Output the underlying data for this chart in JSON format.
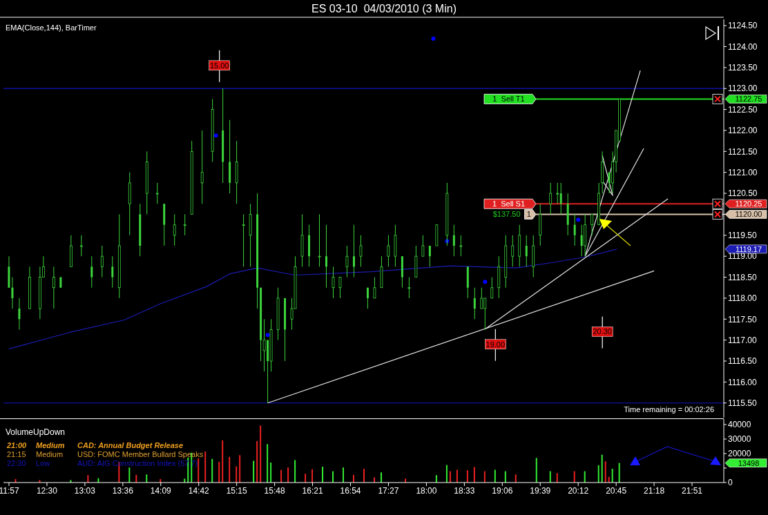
{
  "chart_data": [
    {
      "type": "candlestick",
      "title": "ES 03-10  04/03/2010 (3 Min)",
      "color": "#3cd63c",
      "tick_labels": "y",
      "xlim": [
        11.87,
        22.31
      ],
      "ylim": [
        1115.15,
        1124.65
      ],
      "yticks": [
        {
          "value": 1115.5,
          "label": "1115.50"
        },
        {
          "value": 1116,
          "label": "1116.00"
        },
        {
          "value": 1116.5,
          "label": "1116.50"
        },
        {
          "value": 1117,
          "label": "1117.00"
        },
        {
          "value": 1117.5,
          "label": "1117.50"
        },
        {
          "value": 1118,
          "label": "1118.00"
        },
        {
          "value": 1118.5,
          "label": "1118.50"
        },
        {
          "value": 1119,
          "label": "1119.00"
        },
        {
          "value": 1119.5,
          "label": "1119.50"
        },
        {
          "value": 1120,
          "label": null
        },
        {
          "value": 1120.5,
          "label": "1120.50"
        },
        {
          "value": 1121,
          "label": "1121.00"
        },
        {
          "value": 1121.5,
          "label": "1121.50"
        },
        {
          "value": 1122,
          "label": "1122.00"
        },
        {
          "value": 1122.5,
          "label": "1122.50"
        },
        {
          "value": 1123,
          "label": "1123.00"
        },
        {
          "value": 1123.5,
          "label": "1123.50"
        },
        {
          "value": 1124,
          "label": "1124.00"
        },
        {
          "value": 1124.5,
          "label": "1124.50"
        }
      ],
      "x": [
        11.95,
        12.0,
        12.1,
        12.25,
        12.4,
        12.45,
        12.6,
        12.7,
        12.85,
        13.0,
        13.15,
        13.3,
        13.45,
        13.55,
        13.7,
        13.85,
        13.95,
        14.1,
        14.2,
        14.35,
        14.5,
        14.6,
        14.75,
        14.9,
        15.05,
        15.15,
        15.25,
        15.35,
        15.45,
        15.55,
        15.6,
        15.65,
        15.7,
        15.75,
        15.85,
        15.95,
        16.05,
        16.1,
        16.2,
        16.3,
        16.45,
        16.55,
        16.65,
        16.75,
        16.85,
        16.95,
        17.05,
        17.15,
        17.25,
        17.35,
        17.45,
        17.55,
        17.65,
        17.75,
        17.85,
        17.95,
        18.05,
        18.15,
        18.3,
        18.4,
        18.5,
        18.6,
        18.7,
        18.8,
        18.85,
        18.95,
        19.05,
        19.15,
        19.25,
        19.35,
        19.45,
        19.55,
        19.65,
        19.8,
        19.9,
        19.95,
        20.05,
        20.15,
        20.25,
        20.3,
        20.4,
        20.5,
        20.55,
        20.65,
        20.7,
        20.75,
        20.8
      ],
      "ohlc": [
        [
          1118.75,
          1119.0,
          1118.25,
          1118.25
        ],
        [
          1118.25,
          1118.5,
          1117.75,
          1118.0
        ],
        [
          1117.75,
          1118.0,
          1117.25,
          1117.5
        ],
        [
          1117.75,
          1118.75,
          1117.75,
          1118.5
        ],
        [
          1117.75,
          1118.75,
          1117.5,
          1118.5
        ],
        [
          1118.5,
          1119.0,
          1118.5,
          1118.75
        ],
        [
          1118.25,
          1118.75,
          1117.75,
          1118.5
        ],
        [
          1118.5,
          1118.5,
          1118.25,
          1118.25
        ],
        [
          1118.75,
          1119.5,
          1118.75,
          1119.25
        ],
        [
          1119.25,
          1119.5,
          1119.0,
          1119.25
        ],
        [
          1118.75,
          1119.0,
          1118.25,
          1118.5
        ],
        [
          1118.75,
          1119.25,
          1118.5,
          1119.0
        ],
        [
          1118.75,
          1119.0,
          1118.25,
          1118.5
        ],
        [
          1118.25,
          1120.0,
          1118.0,
          1119.25
        ],
        [
          1120.25,
          1121.0,
          1119.5,
          1120.75
        ],
        [
          1120.0,
          1120.25,
          1119.0,
          1119.25
        ],
        [
          1120.5,
          1121.5,
          1120.0,
          1121.25
        ],
        [
          1120.5,
          1120.75,
          1120.25,
          1120.5
        ],
        [
          1120.25,
          1120.25,
          1119.25,
          1119.75
        ],
        [
          1119.5,
          1120.0,
          1119.25,
          1119.75
        ],
        [
          1119.75,
          1120.0,
          1119.5,
          1119.75
        ],
        [
          1120.0,
          1121.75,
          1120.0,
          1121.5
        ],
        [
          1120.75,
          1122.0,
          1120.25,
          1121.0
        ],
        [
          1121.5,
          1122.75,
          1121.25,
          1122.5
        ],
        [
          1122.0,
          1123.0,
          1120.75,
          1121.25
        ],
        [
          1121.25,
          1122.25,
          1120.5,
          1120.75
        ],
        [
          1120.75,
          1121.75,
          1120.25,
          1121.25
        ],
        [
          1119.75,
          1120.0,
          1118.75,
          1119.75
        ],
        [
          1119.5,
          1120.25,
          1118.75,
          1120.0
        ],
        [
          1120.0,
          1120.5,
          1117.75,
          1118.25
        ],
        [
          1118.25,
          1118.25,
          1116.5,
          1117.0
        ],
        [
          1116.75,
          1117.5,
          1116.25,
          1117.0
        ],
        [
          1117.0,
          1117.0,
          1115.5,
          1116.5
        ],
        [
          1116.5,
          1117.5,
          1116.25,
          1117.25
        ],
        [
          1117.25,
          1118.25,
          1117.0,
          1118.0
        ],
        [
          1118.0,
          1118.0,
          1116.5,
          1117.25
        ],
        [
          1117.5,
          1118.0,
          1117.25,
          1117.75
        ],
        [
          1117.75,
          1119.0,
          1117.75,
          1118.75
        ],
        [
          1119.0,
          1120.0,
          1118.75,
          1119.5
        ],
        [
          1119.5,
          1119.75,
          1118.75,
          1119.0
        ],
        [
          1119.0,
          1120.0,
          1118.75,
          1119.0
        ],
        [
          1119.0,
          1119.75,
          1118.25,
          1118.75
        ],
        [
          1118.25,
          1118.75,
          1118.0,
          1118.5
        ],
        [
          1118.25,
          1118.5,
          1118.0,
          1118.5
        ],
        [
          1118.75,
          1119.25,
          1118.5,
          1119.0
        ],
        [
          1119.0,
          1119.75,
          1118.5,
          1118.75
        ],
        [
          1119.0,
          1119.5,
          1118.75,
          1119.25
        ],
        [
          1118.25,
          1118.25,
          1117.75,
          1118.0
        ],
        [
          1118.0,
          1118.5,
          1118.0,
          1118.25
        ],
        [
          1118.25,
          1119.0,
          1118.25,
          1118.75
        ],
        [
          1119.0,
          1119.5,
          1118.75,
          1119.25
        ],
        [
          1119.0,
          1119.75,
          1118.75,
          1119.5
        ],
        [
          1119.0,
          1119.0,
          1118.25,
          1118.5
        ],
        [
          1118.25,
          1118.5,
          1118.0,
          1118.25
        ],
        [
          1118.5,
          1119.25,
          1118.5,
          1119.0
        ],
        [
          1119.0,
          1119.5,
          1119.0,
          1119.25
        ],
        [
          1119.25,
          1119.25,
          1118.75,
          1119.0
        ],
        [
          1119.25,
          1119.75,
          1119.25,
          1119.75
        ],
        [
          1119.5,
          1120.75,
          1119.25,
          1120.5
        ],
        [
          1119.5,
          1119.75,
          1119.0,
          1119.25
        ],
        [
          1119.25,
          1119.5,
          1119.0,
          1119.25
        ],
        [
          1118.75,
          1118.75,
          1118.0,
          1118.25
        ],
        [
          1118.0,
          1118.25,
          1117.5,
          1117.75
        ],
        [
          1117.75,
          1118.25,
          1117.75,
          1118.0
        ],
        [
          1117.75,
          1118.0,
          1117.25,
          1118.0
        ],
        [
          1118.0,
          1118.5,
          1118.0,
          1118.25
        ],
        [
          1118.25,
          1119.0,
          1118.0,
          1118.75
        ],
        [
          1118.5,
          1119.5,
          1118.25,
          1119.25
        ],
        [
          1119.0,
          1119.5,
          1118.75,
          1119.25
        ],
        [
          1119.0,
          1119.75,
          1118.75,
          1119.5
        ],
        [
          1119.25,
          1119.5,
          1118.75,
          1119.0
        ],
        [
          1118.75,
          1119.5,
          1118.5,
          1119.25
        ],
        [
          1119.5,
          1120.25,
          1119.25,
          1120.0
        ],
        [
          1120.25,
          1120.75,
          1120.0,
          1120.5
        ],
        [
          1120.5,
          1120.75,
          1120.25,
          1120.5
        ],
        [
          1120.5,
          1120.75,
          1120.0,
          1120.25
        ],
        [
          1120.25,
          1120.5,
          1119.5,
          1119.75
        ],
        [
          1119.75,
          1120.0,
          1119.25,
          1119.5
        ],
        [
          1119.5,
          1119.75,
          1119.0,
          1119.25
        ],
        [
          1119.25,
          1120.0,
          1119.0,
          1119.75
        ],
        [
          1119.75,
          1120.0,
          1119.5,
          1120.0
        ],
        [
          1119.75,
          1120.75,
          1119.75,
          1120.5
        ],
        [
          1120.75,
          1121.5,
          1120.5,
          1121.25
        ],
        [
          1121.0,
          1121.0,
          1120.5,
          1120.75
        ],
        [
          1120.75,
          1121.5,
          1120.5,
          1121.25
        ],
        [
          1121.25,
          1122.0,
          1121.0,
          1122.0
        ],
        [
          1121.75,
          1122.75,
          1121.75,
          1122.75
        ]
      ],
      "series": [
        {
          "type": "line",
          "color": "#1c1cb4",
          "x": [
            11.95,
            12.82,
            13.62,
            14.15,
            14.82,
            15.15,
            15.55,
            16.09,
            17.19,
            18.35,
            19.3,
            19.83,
            20.33,
            20.76
          ],
          "values": [
            1116.79,
            1117.18,
            1117.48,
            1117.87,
            1118.28,
            1118.58,
            1118.72,
            1118.55,
            1118.63,
            1118.77,
            1118.72,
            1118.85,
            1118.99,
            1119.17
          ]
        },
        {
          "type": "scatter",
          "color": "#0000ff",
          "marker": "circle",
          "x": [
            14.95,
            15.7,
            18.1,
            18.3,
            18.85,
            20.2
          ],
          "values": [
            1121.88,
            1117.12,
            1124.19,
            1119.36,
            1118.39,
            1119.87
          ]
        },
        {
          "type": "line",
          "color": "#e6e6e6",
          "x": [
            15.7,
            21.3
          ],
          "values": [
            1115.5,
            1118.65
          ]
        },
        {
          "type": "line",
          "color": "#e6e6e6",
          "x": [
            18.85,
            21.5
          ],
          "values": [
            1117.26,
            1120.37
          ]
        },
        {
          "type": "line",
          "color": "#e6e6e6",
          "x": [
            20.3,
            21.15
          ],
          "values": [
            1119.0,
            1121.57
          ]
        },
        {
          "type": "line",
          "color": "#e6e6e6",
          "x": [
            20.3,
            21.1
          ],
          "values": [
            1119.0,
            1123.43
          ]
        },
        {
          "type": "line",
          "color": "#e6e6e6",
          "x": [
            20.55,
            20.7,
            20.55
          ],
          "values": [
            1121.4,
            1120.45,
            1120.8
          ]
        }
      ],
      "ref_lines": [
        {
          "axis": "y",
          "value": 1123,
          "color": "#1414c8"
        },
        {
          "axis": "y",
          "value": 1115.5,
          "color": "#1414c8"
        },
        {
          "axis": "y",
          "value": 1122.75,
          "label": "1122.75",
          "color": "#22e022"
        },
        {
          "axis": "y",
          "value": 1120.25,
          "label": "1120.25",
          "color": "#e02020"
        },
        {
          "axis": "y",
          "value": 1120,
          "label": "1120.00",
          "color": "#d8c0a8"
        }
      ],
      "annotations": [
        "EMA(Close,144), BarTimer",
        "Time remaining = 00:02:26",
        "1  Sell T1",
        "1  Sell S1",
        "1",
        "$137.50",
        "1119.17",
        {
          "text": "15.00",
          "x": 15.0,
          "y": 1123.55
        },
        {
          "text": "19.00",
          "x": 19.0,
          "y": 1116.9
        },
        {
          "text": "20.30",
          "x": 20.55,
          "y": 1117.2
        }
      ]
    },
    {
      "type": "bar",
      "title": "VolumeUpDown",
      "xlim": [
        11.87,
        22.31
      ],
      "ylim": [
        0,
        43800
      ],
      "xticks": [
        {
          "value": 11.95,
          "label": "11:57"
        },
        {
          "value": 12.5,
          "label": "12:30"
        },
        {
          "value": 13.05,
          "label": "13:03"
        },
        {
          "value": 13.6,
          "label": "13:36"
        },
        {
          "value": 14.15,
          "label": "14:09"
        },
        {
          "value": 14.7,
          "label": "14:42"
        },
        {
          "value": 15.25,
          "label": "15:15"
        },
        {
          "value": 15.8,
          "label": "15:48"
        },
        {
          "value": 16.35,
          "label": "16:21"
        },
        {
          "value": 16.9,
          "label": "16:54"
        },
        {
          "value": 17.45,
          "label": "17:27"
        },
        {
          "value": 18.0,
          "label": "18:00"
        },
        {
          "value": 18.55,
          "label": "18:33"
        },
        {
          "value": 19.1,
          "label": "19:06"
        },
        {
          "value": 19.65,
          "label": "19:39"
        },
        {
          "value": 20.2,
          "label": "20:12"
        },
        {
          "value": 20.75,
          "label": "20:45"
        },
        {
          "value": 21.3,
          "label": "21:18"
        },
        {
          "value": 21.85,
          "label": "21:51"
        }
      ],
      "yticks": [
        0,
        {
          "value": 10000,
          "label": null
        },
        20000,
        30000,
        40000
      ],
      "x": [
        12.05,
        12.4,
        12.85,
        13.1,
        13.25,
        13.55,
        13.7,
        13.8,
        13.95,
        14.15,
        14.5,
        14.55,
        14.6,
        14.7,
        14.8,
        14.9,
        15.0,
        15.05,
        15.15,
        15.25,
        15.3,
        15.5,
        15.55,
        15.6,
        15.7,
        15.75,
        15.9,
        16.0,
        16.1,
        16.25,
        16.35,
        16.5,
        16.65,
        16.8,
        16.95,
        17.1,
        17.25,
        17.35,
        17.7,
        18.15,
        18.3,
        18.35,
        18.45,
        18.6,
        18.7,
        18.85,
        19.0,
        19.15,
        19.3,
        19.6,
        19.8,
        19.9,
        20.15,
        20.3,
        20.5,
        20.55,
        20.6,
        20.65,
        20.7,
        20.8
      ],
      "values": [
        2400,
        1700,
        1700,
        5100,
        3000,
        14300,
        10400,
        5300,
        5600,
        2400,
        2700,
        17200,
        20600,
        16700,
        21400,
        16300,
        14300,
        29100,
        17700,
        11200,
        18900,
        15000,
        28600,
        39300,
        26500,
        13800,
        8700,
        10400,
        15500,
        6100,
        9200,
        10900,
        7800,
        10400,
        5300,
        9500,
        3600,
        7000,
        2700,
        5100,
        12100,
        7800,
        8800,
        8500,
        10700,
        7800,
        8800,
        7800,
        5600,
        17000,
        7800,
        6500,
        7800,
        7800,
        11900,
        19200,
        14600,
        3900,
        9500,
        13498
      ],
      "colors": [
        "#ee2020",
        "#ee2020",
        "#33ee33",
        "#ee2020",
        "#33ee33",
        "#ee2020",
        "#33ee33",
        "#ee2020",
        "#33ee33",
        "#ee2020",
        "#33ee33",
        "#33ee33",
        "#33ee33",
        "#ee2020",
        "#ee2020",
        "#33ee33",
        "#ee2020",
        "#ee2020",
        "#ee2020",
        "#ee2020",
        "#ee2020",
        "#33ee33",
        "#ee2020",
        "#ee2020",
        "#33ee33",
        "#33ee33",
        "#ee2020",
        "#ee2020",
        "#33ee33",
        "#ee2020",
        "#ee2020",
        "#33ee33",
        "#33ee33",
        "#33ee33",
        "#ee2020",
        "#ee2020",
        "#ee2020",
        "#33ee33",
        "#ee2020",
        "#33ee33",
        "#33ee33",
        "#ee2020",
        "#ee2020",
        "#ee2020",
        "#ee2020",
        "#ee2020",
        "#33ee33",
        "#33ee33",
        "#ee2020",
        "#33ee33",
        "#33ee33",
        "#ee2020",
        "#ee2020",
        "#33ee33",
        "#33ee33",
        "#33ee33",
        "#ee2020",
        "#ee2020",
        "#33ee33",
        "#33ee33"
      ],
      "annotations": [
        "21:00",
        "Medium",
        "CAD: Annual Budget Release",
        "21:15",
        "Medium",
        "USD: FOMC Member Bullard Speaks",
        "22:30",
        "Low",
        "AUD: AIG Construction Index (57.7)",
        "13498"
      ]
    }
  ]
}
